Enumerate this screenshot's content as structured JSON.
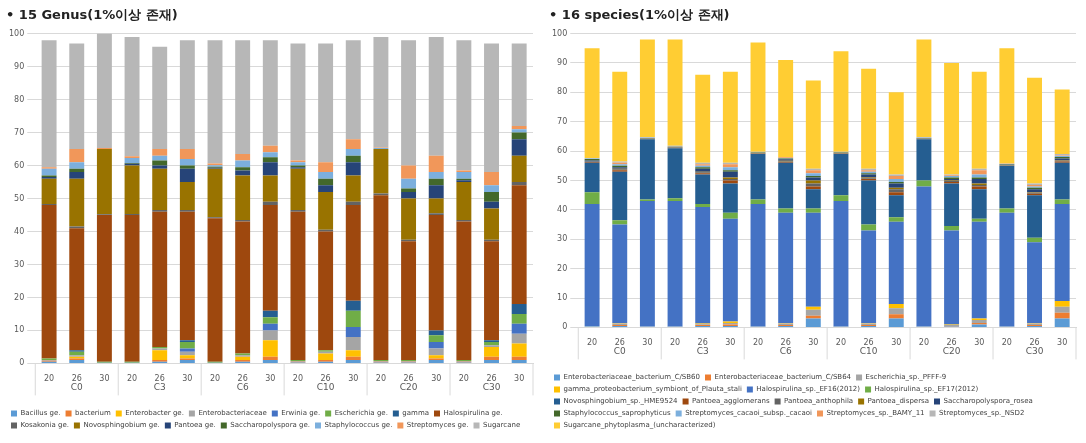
{
  "chart_data": [
    {
      "type": "bar",
      "title": "• 15 Genus(1%이상 존재)",
      "categories": [
        "20",
        "26",
        "30",
        "20",
        "26",
        "30",
        "20",
        "26",
        "30",
        "20",
        "26",
        "30",
        "20",
        "26",
        "30",
        "20",
        "26",
        "30"
      ],
      "groups": [
        "C0",
        "C3",
        "C6",
        "C10",
        "C20",
        "C30"
      ],
      "stacked": true,
      "grid": true,
      "legend": "bottom",
      "ylim": [
        0,
        100
      ],
      "yticks": [
        0,
        10,
        20,
        30,
        40,
        50,
        60,
        70,
        80,
        90,
        100
      ],
      "series": [
        {
          "name": "Bacillus ge.",
          "color": "#5b9bd5",
          "values": [
            0.5,
            1,
            0.2,
            0.2,
            0.5,
            1,
            0.2,
            0.5,
            1,
            0.3,
            0.5,
            1,
            0.3,
            0.3,
            1,
            0.3,
            1,
            1
          ]
        },
        {
          "name": "bacterium",
          "color": "#ed7d31",
          "values": [
            0.3,
            0.5,
            0,
            0,
            0.5,
            0.5,
            0,
            0.5,
            1,
            0.2,
            0.5,
            1,
            0.2,
            0.2,
            0.5,
            0.2,
            1,
            1
          ]
        },
        {
          "name": "Enterobacter ge.",
          "color": "#ffc000",
          "values": [
            0,
            0.5,
            0,
            0,
            3,
            1,
            0,
            1,
            5,
            0,
            2,
            2,
            0,
            0,
            1,
            0,
            3,
            4
          ]
        },
        {
          "name": "Enterobacteriaceae",
          "color": "#a5a5a5",
          "values": [
            0.2,
            0.5,
            0,
            0,
            0.5,
            1,
            0,
            0.5,
            3,
            0.2,
            0.5,
            4,
            0.2,
            0.2,
            2,
            0.2,
            0.5,
            3
          ]
        },
        {
          "name": "Erwinia ge.",
          "color": "#4472c4",
          "values": [
            0,
            0,
            0,
            0,
            0,
            1,
            0,
            0,
            2,
            0,
            0,
            3,
            0,
            0,
            2,
            0,
            0,
            3
          ]
        },
        {
          "name": "Escherichia ge.",
          "color": "#70ad47",
          "values": [
            0.5,
            1,
            0.3,
            0.3,
            0.5,
            2,
            0.3,
            0.5,
            2,
            0.3,
            0.5,
            5,
            0.3,
            0.3,
            2,
            0.3,
            1,
            3
          ]
        },
        {
          "name": "gamma",
          "color": "#255e91",
          "values": [
            0,
            0.5,
            0,
            0,
            0,
            0.5,
            0,
            0,
            2,
            0,
            0,
            3,
            0,
            0,
            1.5,
            0,
            0.5,
            3
          ]
        },
        {
          "name": "Halospirulina ge.",
          "color": "#9e480e",
          "values": [
            46.5,
            37,
            44.5,
            44.5,
            41,
            39,
            43.5,
            40,
            32,
            45,
            36,
            29,
            50,
            36,
            35,
            42,
            30,
            36
          ]
        },
        {
          "name": "Kosakonia ge.",
          "color": "#636363",
          "values": [
            0.3,
            0.5,
            0.2,
            0.3,
            0.5,
            0.5,
            0.3,
            0.5,
            1,
            0.5,
            0.5,
            1,
            0.5,
            0.5,
            0.5,
            0.5,
            0.5,
            1
          ]
        },
        {
          "name": "Novosphingobium ge.",
          "color": "#997300",
          "values": [
            7.7,
            14.5,
            19.8,
            14.7,
            12.5,
            8.5,
            14.7,
            13.5,
            8,
            12.5,
            11.5,
            8,
            13.5,
            12.5,
            4.5,
            11.5,
            9.5,
            8
          ]
        },
        {
          "name": "Pantoea ge.",
          "color": "#264478",
          "values": [
            0.5,
            2,
            0,
            0.5,
            1,
            4,
            0.3,
            1.5,
            4,
            0.5,
            2,
            4,
            0,
            2,
            4,
            0.5,
            2,
            5
          ]
        },
        {
          "name": "Saccharopolyspora ge.",
          "color": "#43682b",
          "values": [
            0.5,
            1,
            0,
            0.3,
            1.5,
            1,
            0.3,
            1,
            1.5,
            0.5,
            2,
            2,
            0,
            1,
            2,
            0.5,
            3,
            2
          ]
        },
        {
          "name": "Staphylococcus ge.",
          "color": "#7cafdd",
          "values": [
            2,
            2,
            0,
            1.5,
            1.5,
            2,
            0.5,
            2,
            1.5,
            1,
            2,
            2,
            0.3,
            3,
            2,
            2,
            2,
            1
          ]
        },
        {
          "name": "Streptomyces ge.",
          "color": "#f1975a",
          "values": [
            0.5,
            4,
            0.3,
            0.5,
            2,
            3,
            0.5,
            2,
            2,
            0.5,
            3,
            3,
            0.2,
            4,
            5,
            0.5,
            4,
            1
          ]
        },
        {
          "name": "Sugarcane",
          "color": "#b7b7b7",
          "values": [
            38.5,
            32,
            34.7,
            36.2,
            31,
            33,
            37.4,
            34.5,
            32,
            35.5,
            36,
            30,
            33.5,
            38,
            36,
            39.5,
            39,
            25
          ]
        }
      ]
    },
    {
      "type": "bar",
      "title": "• 16 species(1%이상 존재)",
      "categories": [
        "20",
        "26",
        "30",
        "20",
        "26",
        "30",
        "20",
        "26",
        "30",
        "20",
        "26",
        "30",
        "20",
        "26",
        "30",
        "20",
        "26",
        "30"
      ],
      "groups": [
        "C0",
        "C3",
        "C6",
        "C10",
        "C20",
        "C30"
      ],
      "stacked": true,
      "grid": true,
      "legend": "bottom",
      "ylim": [
        0,
        100
      ],
      "yticks": [
        0,
        10,
        20,
        30,
        40,
        50,
        60,
        70,
        80,
        90,
        100
      ],
      "series": [
        {
          "name": "Enterobacteriaceae_bacterium_C/SB60",
          "color": "#5b9bd5",
          "values": [
            0.3,
            0.5,
            0.2,
            0.2,
            0.5,
            0.5,
            0.2,
            0.5,
            3,
            0.2,
            0.5,
            3,
            0.2,
            0.3,
            1,
            0.2,
            0.5,
            3
          ]
        },
        {
          "name": "Enterobacteriaceae_bacterium_C/SB64",
          "color": "#ed7d31",
          "values": [
            0,
            0.3,
            0,
            0,
            0.3,
            0.5,
            0,
            0.3,
            1,
            0,
            0.3,
            1.5,
            0,
            0.2,
            0.5,
            0,
            0.3,
            2
          ]
        },
        {
          "name": "Escherichia_sp._PFFF-9",
          "color": "#a5a5a5",
          "values": [
            0.2,
            0.5,
            0.1,
            0.1,
            0.3,
            0.5,
            0.1,
            0.5,
            2,
            0.1,
            0.5,
            2,
            0.1,
            0.3,
            1,
            0.1,
            0.5,
            2
          ]
        },
        {
          "name": "gamma_proteobacterium_symbiont_of_Plauta_stali",
          "color": "#ffc000",
          "values": [
            0,
            0.2,
            0,
            0,
            0.2,
            0.5,
            0,
            0.2,
            1,
            0,
            0.2,
            1.5,
            0,
            0.2,
            0.5,
            0,
            0.2,
            2
          ]
        },
        {
          "name": "Halospirulina_sp._EF16(2012)",
          "color": "#4472c4",
          "values": [
            41.5,
            33.5,
            42.7,
            42.7,
            39.7,
            35,
            41.7,
            37.5,
            32,
            42.7,
            31.5,
            28,
            47.7,
            32,
            33,
            38.7,
            27.5,
            33
          ]
        },
        {
          "name": "Halospirulina_sp._EF17(2012)",
          "color": "#70ad47",
          "values": [
            4,
            1.5,
            0.5,
            1,
            1,
            2,
            1.5,
            1.5,
            1.5,
            2,
            2,
            1.5,
            2,
            1.5,
            1,
            1.5,
            1.5,
            1.5
          ]
        },
        {
          "name": "Novosphingobium_sp._HME9524",
          "color": "#255e91",
          "values": [
            10,
            16.5,
            20.5,
            17,
            10,
            10,
            15.5,
            15.5,
            6.5,
            14,
            15,
            7.5,
            14,
            14.5,
            10,
            14.5,
            14.5,
            12.5
          ]
        },
        {
          "name": "Pantoea_agglomerans",
          "color": "#9e480e",
          "values": [
            0.3,
            0.5,
            0.1,
            0.1,
            0.5,
            1,
            0.1,
            0.3,
            1,
            0.1,
            0.5,
            1,
            0.1,
            0.5,
            1,
            0.1,
            0.5,
            0.5
          ]
        },
        {
          "name": "Pantoea_anthophila",
          "color": "#636363",
          "values": [
            0.2,
            0.3,
            0.1,
            0.1,
            0.3,
            0.5,
            0.1,
            0.2,
            1,
            0.1,
            0.3,
            1,
            0.1,
            0.3,
            0.5,
            0.1,
            0.3,
            0.3
          ]
        },
        {
          "name": "Pantoea_dispersa",
          "color": "#997300",
          "values": [
            0,
            0.2,
            0.1,
            0.1,
            0.2,
            0.5,
            0.1,
            0.2,
            1,
            0.1,
            0.2,
            0.5,
            0.1,
            0.2,
            0.5,
            0.1,
            0.2,
            0.2
          ]
        },
        {
          "name": "Saccharopolyspora_rosea",
          "color": "#264478",
          "values": [
            0.3,
            0.5,
            0.1,
            0.1,
            1,
            2,
            0.1,
            0.5,
            1,
            0.1,
            1,
            1.5,
            0.1,
            0.5,
            1.5,
            0.1,
            1,
            0.5
          ]
        },
        {
          "name": "Staphylococcus_saprophyticus",
          "color": "#43682b",
          "values": [
            0.5,
            0.5,
            0.1,
            0.1,
            0.5,
            0.5,
            0.1,
            0.3,
            0.5,
            0.1,
            0.5,
            0.5,
            0.1,
            0.5,
            0.5,
            0.1,
            0.5,
            0.5
          ]
        },
        {
          "name": "Streptomyces_cacaoi_subsp._cacaoi",
          "color": "#7cafdd",
          "values": [
            0.2,
            0.5,
            0.1,
            0.1,
            0.5,
            1,
            0.1,
            0.2,
            1,
            0.1,
            0.5,
            1,
            0.1,
            0.5,
            1,
            0.1,
            0.5,
            0.3
          ]
        },
        {
          "name": "Streptomyces_sp._BAMY_11",
          "color": "#f1975a",
          "values": [
            0,
            0.5,
            0.1,
            0.1,
            0.5,
            1,
            0.1,
            0.2,
            1,
            0.1,
            0.5,
            1,
            0.1,
            0.3,
            1.5,
            0.1,
            0.5,
            0.2
          ]
        },
        {
          "name": "Streptomyces_sp._NSD2",
          "color": "#b7b7b7",
          "values": [
            0.2,
            0.5,
            0.1,
            0.1,
            0.5,
            0.5,
            0.1,
            0.1,
            0.5,
            0.1,
            0.5,
            0.5,
            0.1,
            0.2,
            0.5,
            0.1,
            0.5,
            0.5
          ]
        },
        {
          "name": "Sugarcane_phytoplasma_(uncharacterized)",
          "color": "#ffcd33",
          "values": [
            37.3,
            30.5,
            33.2,
            36.2,
            30,
            31,
            37.2,
            33,
            30,
            34.2,
            34,
            28,
            33.2,
            38,
            33,
            39.2,
            36,
            22
          ]
        }
      ]
    }
  ]
}
